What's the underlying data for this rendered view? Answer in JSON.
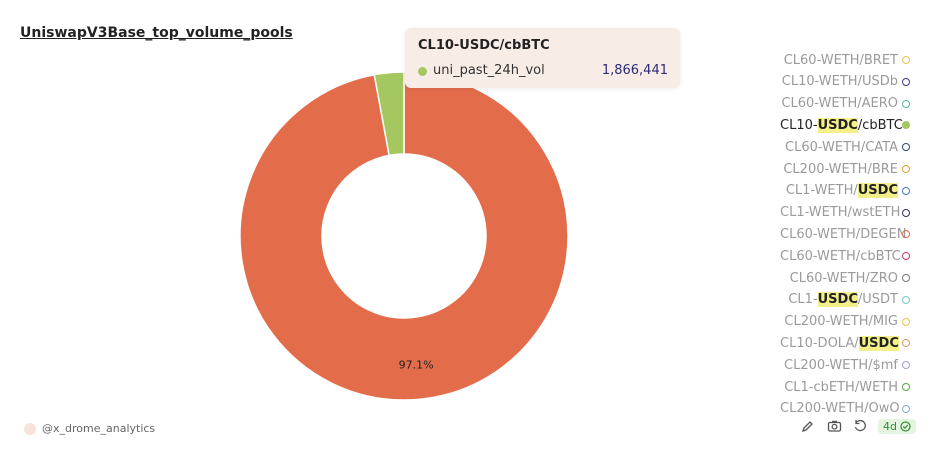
{
  "title": "UniswapV3Base_top_volume_pools",
  "chart_data": {
    "type": "pie",
    "title": "UniswapV3Base_top_volume_pools",
    "series_name": "uni_past_24h_vol",
    "slices": [
      {
        "label": "",
        "value": 97.1,
        "display": "97.1%",
        "color": "#e36c4b"
      },
      {
        "label": "CL10-USDC/cbBTC",
        "value": 2.9,
        "color": "#a5c760"
      }
    ],
    "legend_position": "right"
  },
  "tooltip": {
    "title": "CL10-USDC/cbBTC",
    "series_label": "uni_past_24h_vol",
    "value": "1,866,441",
    "color": "#a5c760"
  },
  "legend": {
    "items": [
      {
        "pre": "CL60-WETH/BRET",
        "hl": "",
        "post": "",
        "color": "#e8c44f",
        "active": false
      },
      {
        "pre": "CL10-WETH/USDb",
        "hl": "",
        "post": "",
        "color": "#3a3a8a",
        "active": false
      },
      {
        "pre": "CL60-WETH/AERO",
        "hl": "",
        "post": "",
        "color": "#5fb8a8",
        "active": false
      },
      {
        "pre": "CL10-",
        "hl": "USDC",
        "post": "/cbBTC",
        "color": "#a5c760",
        "active": true
      },
      {
        "pre": "CL60-WETH/CATA",
        "hl": "",
        "post": "",
        "color": "#2a4a6a",
        "active": false
      },
      {
        "pre": "CL200-WETH/BRE",
        "hl": "",
        "post": "",
        "color": "#e3a030",
        "active": false
      },
      {
        "pre": "CL1-WETH/",
        "hl": "USDC",
        "post": "",
        "color": "#4a7ac8",
        "active": false
      },
      {
        "pre": "CL1-WETH/wstETH",
        "hl": "",
        "post": "",
        "color": "#3a2a6a",
        "active": false
      },
      {
        "pre": "CL60-WETH/DEGEN",
        "hl": "",
        "post": "",
        "color": "#e36c4b",
        "active": false
      },
      {
        "pre": "CL60-WETH/cbBTC",
        "hl": "",
        "post": "",
        "color": "#c83a6a",
        "active": false
      },
      {
        "pre": "CL60-WETH/ZRO",
        "hl": "",
        "post": "",
        "color": "#777777",
        "active": false
      },
      {
        "pre": "CL1-",
        "hl": "USDC",
        "post": "/USDT",
        "color": "#7ac8c8",
        "active": false
      },
      {
        "pre": "CL200-WETH/MIG",
        "hl": "",
        "post": "",
        "color": "#e8c44f",
        "active": false
      },
      {
        "pre": "CL10-DOLA/",
        "hl": "USDC",
        "post": "",
        "color": "#e3946a",
        "active": false
      },
      {
        "pre": "CL200-WETH/$mf",
        "hl": "",
        "post": "",
        "color": "#a89ad8",
        "active": false
      },
      {
        "pre": "CL1-cbETH/WETH",
        "hl": "",
        "post": "",
        "color": "#5aa84a",
        "active": false
      },
      {
        "pre": "CL200-WETH/OwO",
        "hl": "",
        "post": "",
        "color": "#8aa8d8",
        "active": false
      }
    ]
  },
  "footer": {
    "source": "@x_drome_analytics",
    "age_badge": "4d"
  }
}
